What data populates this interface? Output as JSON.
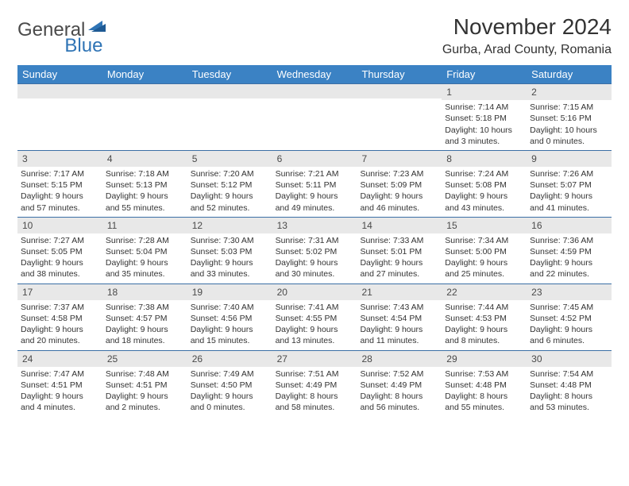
{
  "brand": {
    "text1": "General",
    "text2": "Blue"
  },
  "title": "November 2024",
  "location": "Gurba, Arad County, Romania",
  "colors": {
    "header_bg": "#3b82c4",
    "header_text": "#ffffff",
    "daynum_bg": "#e8e8e8",
    "week_border": "#3b6fa5",
    "body_text": "#333333",
    "brand_blue": "#2f74b5"
  },
  "weekdays": [
    "Sunday",
    "Monday",
    "Tuesday",
    "Wednesday",
    "Thursday",
    "Friday",
    "Saturday"
  ],
  "weeks": [
    [
      {
        "n": "",
        "sr": "",
        "ss": "",
        "dl": ""
      },
      {
        "n": "",
        "sr": "",
        "ss": "",
        "dl": ""
      },
      {
        "n": "",
        "sr": "",
        "ss": "",
        "dl": ""
      },
      {
        "n": "",
        "sr": "",
        "ss": "",
        "dl": ""
      },
      {
        "n": "",
        "sr": "",
        "ss": "",
        "dl": ""
      },
      {
        "n": "1",
        "sr": "Sunrise: 7:14 AM",
        "ss": "Sunset: 5:18 PM",
        "dl": "Daylight: 10 hours and 3 minutes."
      },
      {
        "n": "2",
        "sr": "Sunrise: 7:15 AM",
        "ss": "Sunset: 5:16 PM",
        "dl": "Daylight: 10 hours and 0 minutes."
      }
    ],
    [
      {
        "n": "3",
        "sr": "Sunrise: 7:17 AM",
        "ss": "Sunset: 5:15 PM",
        "dl": "Daylight: 9 hours and 57 minutes."
      },
      {
        "n": "4",
        "sr": "Sunrise: 7:18 AM",
        "ss": "Sunset: 5:13 PM",
        "dl": "Daylight: 9 hours and 55 minutes."
      },
      {
        "n": "5",
        "sr": "Sunrise: 7:20 AM",
        "ss": "Sunset: 5:12 PM",
        "dl": "Daylight: 9 hours and 52 minutes."
      },
      {
        "n": "6",
        "sr": "Sunrise: 7:21 AM",
        "ss": "Sunset: 5:11 PM",
        "dl": "Daylight: 9 hours and 49 minutes."
      },
      {
        "n": "7",
        "sr": "Sunrise: 7:23 AM",
        "ss": "Sunset: 5:09 PM",
        "dl": "Daylight: 9 hours and 46 minutes."
      },
      {
        "n": "8",
        "sr": "Sunrise: 7:24 AM",
        "ss": "Sunset: 5:08 PM",
        "dl": "Daylight: 9 hours and 43 minutes."
      },
      {
        "n": "9",
        "sr": "Sunrise: 7:26 AM",
        "ss": "Sunset: 5:07 PM",
        "dl": "Daylight: 9 hours and 41 minutes."
      }
    ],
    [
      {
        "n": "10",
        "sr": "Sunrise: 7:27 AM",
        "ss": "Sunset: 5:05 PM",
        "dl": "Daylight: 9 hours and 38 minutes."
      },
      {
        "n": "11",
        "sr": "Sunrise: 7:28 AM",
        "ss": "Sunset: 5:04 PM",
        "dl": "Daylight: 9 hours and 35 minutes."
      },
      {
        "n": "12",
        "sr": "Sunrise: 7:30 AM",
        "ss": "Sunset: 5:03 PM",
        "dl": "Daylight: 9 hours and 33 minutes."
      },
      {
        "n": "13",
        "sr": "Sunrise: 7:31 AM",
        "ss": "Sunset: 5:02 PM",
        "dl": "Daylight: 9 hours and 30 minutes."
      },
      {
        "n": "14",
        "sr": "Sunrise: 7:33 AM",
        "ss": "Sunset: 5:01 PM",
        "dl": "Daylight: 9 hours and 27 minutes."
      },
      {
        "n": "15",
        "sr": "Sunrise: 7:34 AM",
        "ss": "Sunset: 5:00 PM",
        "dl": "Daylight: 9 hours and 25 minutes."
      },
      {
        "n": "16",
        "sr": "Sunrise: 7:36 AM",
        "ss": "Sunset: 4:59 PM",
        "dl": "Daylight: 9 hours and 22 minutes."
      }
    ],
    [
      {
        "n": "17",
        "sr": "Sunrise: 7:37 AM",
        "ss": "Sunset: 4:58 PM",
        "dl": "Daylight: 9 hours and 20 minutes."
      },
      {
        "n": "18",
        "sr": "Sunrise: 7:38 AM",
        "ss": "Sunset: 4:57 PM",
        "dl": "Daylight: 9 hours and 18 minutes."
      },
      {
        "n": "19",
        "sr": "Sunrise: 7:40 AM",
        "ss": "Sunset: 4:56 PM",
        "dl": "Daylight: 9 hours and 15 minutes."
      },
      {
        "n": "20",
        "sr": "Sunrise: 7:41 AM",
        "ss": "Sunset: 4:55 PM",
        "dl": "Daylight: 9 hours and 13 minutes."
      },
      {
        "n": "21",
        "sr": "Sunrise: 7:43 AM",
        "ss": "Sunset: 4:54 PM",
        "dl": "Daylight: 9 hours and 11 minutes."
      },
      {
        "n": "22",
        "sr": "Sunrise: 7:44 AM",
        "ss": "Sunset: 4:53 PM",
        "dl": "Daylight: 9 hours and 8 minutes."
      },
      {
        "n": "23",
        "sr": "Sunrise: 7:45 AM",
        "ss": "Sunset: 4:52 PM",
        "dl": "Daylight: 9 hours and 6 minutes."
      }
    ],
    [
      {
        "n": "24",
        "sr": "Sunrise: 7:47 AM",
        "ss": "Sunset: 4:51 PM",
        "dl": "Daylight: 9 hours and 4 minutes."
      },
      {
        "n": "25",
        "sr": "Sunrise: 7:48 AM",
        "ss": "Sunset: 4:51 PM",
        "dl": "Daylight: 9 hours and 2 minutes."
      },
      {
        "n": "26",
        "sr": "Sunrise: 7:49 AM",
        "ss": "Sunset: 4:50 PM",
        "dl": "Daylight: 9 hours and 0 minutes."
      },
      {
        "n": "27",
        "sr": "Sunrise: 7:51 AM",
        "ss": "Sunset: 4:49 PM",
        "dl": "Daylight: 8 hours and 58 minutes."
      },
      {
        "n": "28",
        "sr": "Sunrise: 7:52 AM",
        "ss": "Sunset: 4:49 PM",
        "dl": "Daylight: 8 hours and 56 minutes."
      },
      {
        "n": "29",
        "sr": "Sunrise: 7:53 AM",
        "ss": "Sunset: 4:48 PM",
        "dl": "Daylight: 8 hours and 55 minutes."
      },
      {
        "n": "30",
        "sr": "Sunrise: 7:54 AM",
        "ss": "Sunset: 4:48 PM",
        "dl": "Daylight: 8 hours and 53 minutes."
      }
    ]
  ]
}
